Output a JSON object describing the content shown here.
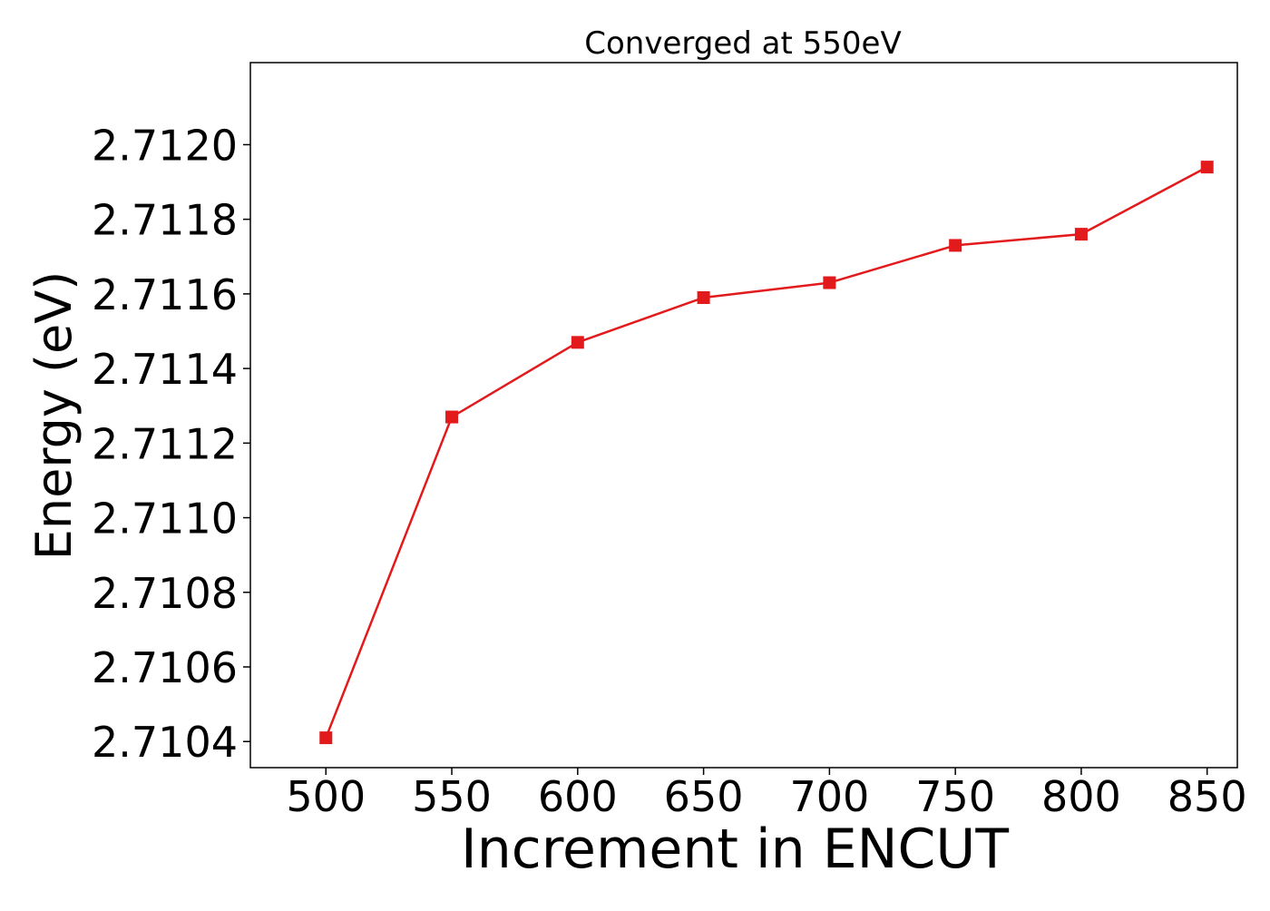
{
  "chart_data": {
    "type": "line",
    "title": "Converged at 550eV",
    "xlabel": "Increment in ENCUT",
    "ylabel": "Energy (eV)",
    "xlim": [
      470,
      862
    ],
    "ylim": [
      2.71033,
      2.71222
    ],
    "xticks": [
      500,
      550,
      600,
      650,
      700,
      750,
      800,
      850
    ],
    "yticks": [
      2.7104,
      2.7106,
      2.7108,
      2.711,
      2.7112,
      2.7114,
      2.7116,
      2.7118,
      2.712
    ],
    "ytick_labels": [
      "2.7104",
      "2.7106",
      "2.7108",
      "2.7110",
      "2.7112",
      "2.7114",
      "2.7116",
      "2.7118",
      "2.7120"
    ],
    "grid": false,
    "series": [
      {
        "color": "#e31a1c",
        "marker": "square",
        "x": [
          500,
          550,
          600,
          650,
          700,
          750,
          800,
          850
        ],
        "y": [
          2.71041,
          2.71127,
          2.71147,
          2.71159,
          2.71163,
          2.71173,
          2.71176,
          2.71194
        ]
      }
    ]
  }
}
